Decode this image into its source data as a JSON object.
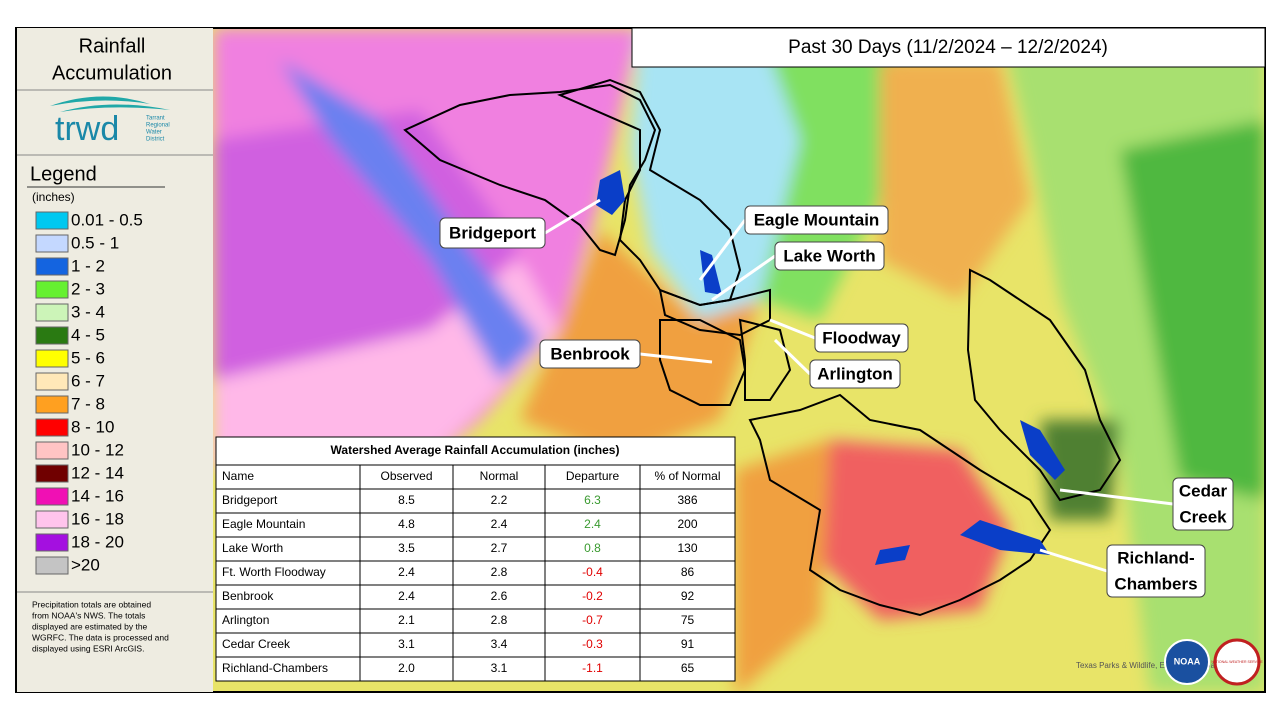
{
  "panel": {
    "title_lines": [
      "Rainfall",
      "Accumulation"
    ],
    "logo": {
      "name": "trwd",
      "tagline": [
        "Tarrant",
        "Regional",
        "Water",
        "District"
      ]
    },
    "legend_title": "Legend",
    "legend_units": "(inches)",
    "legend_items": [
      {
        "label": "0.01 - 0.5",
        "color": "#00c8f0"
      },
      {
        "label": "0.5 - 1",
        "color": "#c4d8ff"
      },
      {
        "label": "1 - 2",
        "color": "#1464e0"
      },
      {
        "label": "2 - 3",
        "color": "#66f030"
      },
      {
        "label": "3 - 4",
        "color": "#ccf4b8"
      },
      {
        "label": "4 - 5",
        "color": "#2a7a12"
      },
      {
        "label": "5 - 6",
        "color": "#ffff00"
      },
      {
        "label": "6 - 7",
        "color": "#ffe8b8"
      },
      {
        "label": "7 - 8",
        "color": "#ffa020"
      },
      {
        "label": "8 - 10",
        "color": "#ff0000"
      },
      {
        "label": "10 - 12",
        "color": "#ffc4c4"
      },
      {
        "label": "12 - 14",
        "color": "#700000"
      },
      {
        "label": "14 - 16",
        "color": "#f010b4"
      },
      {
        "label": "16 - 18",
        "color": "#ffc4ec"
      },
      {
        "label": "18 - 20",
        "color": "#a410e0"
      },
      {
        "label": ">20",
        "color": "#c4c4c4"
      }
    ],
    "note": [
      "Precipitation totals are obtained",
      "from NOAA's NWS. The totals",
      "displayed are estimated by the",
      "WGRFC. The data is processed and",
      "displayed using ESRI ArcGIS."
    ]
  },
  "header": {
    "title": "Past 30 Days (11/2/2024 – 12/2/2024)"
  },
  "map": {
    "labels": [
      [
        "Bridgeport"
      ],
      [
        "Eagle Mountain"
      ],
      [
        "Lake Worth"
      ],
      [
        "Floodway"
      ],
      [
        "Benbrook"
      ],
      [
        "Arlington"
      ],
      [
        "Cedar",
        "Creek"
      ],
      [
        "Richland-",
        "Chambers"
      ]
    ],
    "attribution": "Texas Parks & Wildlife, Esri, HERE, Garmin, USGS.",
    "logos": [
      "NOAA",
      "NATIONAL WEATHER SERVICE"
    ]
  },
  "table": {
    "title": "Watershed Average Rainfall Accumulation (inches)",
    "columns": [
      "Name",
      "Observed",
      "Normal",
      "Departure",
      "% of Normal"
    ],
    "rows": [
      [
        "Bridgeport",
        "8.5",
        "2.2",
        "6.3",
        "386"
      ],
      [
        "Eagle Mountain",
        "4.8",
        "2.4",
        "2.4",
        "200"
      ],
      [
        "Lake Worth",
        "3.5",
        "2.7",
        "0.8",
        "130"
      ],
      [
        "Ft. Worth Floodway",
        "2.4",
        "2.8",
        "-0.4",
        "86"
      ],
      [
        "Benbrook",
        "2.4",
        "2.6",
        "-0.2",
        "92"
      ],
      [
        "Arlington",
        "2.1",
        "2.8",
        "-0.7",
        "75"
      ],
      [
        "Cedar Creek",
        "3.1",
        "3.4",
        "-0.3",
        "91"
      ],
      [
        "Richland-Chambers",
        "2.0",
        "3.1",
        "-1.1",
        "65"
      ]
    ]
  }
}
